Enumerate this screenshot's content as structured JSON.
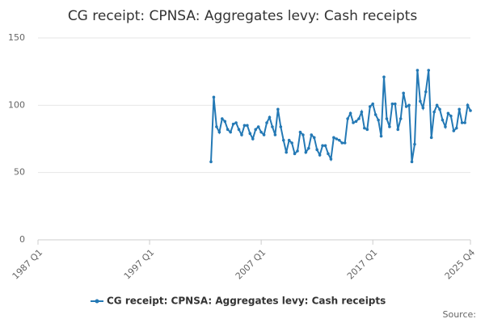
{
  "chart_data": {
    "type": "line",
    "title": "CG receipt: CPNSA: Aggregates levy: Cash receipts",
    "categories": [
      "1987 Q1",
      null,
      null,
      null,
      null,
      null,
      null,
      null,
      null,
      null,
      null,
      null,
      null,
      null,
      null,
      null,
      null,
      null,
      null,
      null,
      null,
      null,
      null,
      null,
      null,
      null,
      null,
      null,
      null,
      null,
      null,
      null,
      null,
      null,
      null,
      null,
      null,
      null,
      null,
      null,
      "1997 Q1",
      null,
      null,
      null,
      null,
      null,
      null,
      null,
      null,
      null,
      null,
      null,
      null,
      null,
      null,
      null,
      null,
      null,
      null,
      null,
      null,
      null,
      null,
      null,
      null,
      null,
      null,
      null,
      null,
      null,
      null,
      null,
      null,
      null,
      null,
      null,
      null,
      null,
      null,
      null,
      "2007 Q1",
      null,
      null,
      null,
      null,
      null,
      null,
      null,
      null,
      null,
      null,
      null,
      null,
      null,
      null,
      null,
      null,
      null,
      null,
      null,
      null,
      null,
      null,
      null,
      null,
      null,
      null,
      null,
      null,
      null,
      null,
      null,
      null,
      null,
      null,
      null,
      null,
      null,
      null,
      null,
      "2017 Q1",
      null,
      null,
      null,
      null,
      null,
      null,
      null,
      null,
      null,
      null,
      null,
      null,
      null,
      null,
      null,
      null,
      null,
      null,
      null,
      null,
      null,
      null,
      null,
      null,
      null,
      null,
      null,
      null,
      null,
      null,
      null,
      null,
      null,
      null,
      "2025 Q4"
    ],
    "series": [
      {
        "name": "CG receipt: CPNSA: Aggregates levy: Cash receipts",
        "color": "#2479b5",
        "values": [
          null,
          null,
          null,
          null,
          null,
          null,
          null,
          null,
          null,
          null,
          null,
          null,
          null,
          null,
          null,
          null,
          null,
          null,
          null,
          null,
          null,
          null,
          null,
          null,
          null,
          null,
          null,
          null,
          null,
          null,
          null,
          null,
          null,
          null,
          null,
          null,
          null,
          null,
          null,
          null,
          null,
          null,
          null,
          null,
          null,
          null,
          null,
          null,
          null,
          null,
          null,
          null,
          null,
          null,
          null,
          null,
          null,
          null,
          null,
          null,
          null,
          null,
          58,
          106,
          84,
          80,
          90,
          88,
          82,
          80,
          86,
          87,
          82,
          78,
          85,
          85,
          79,
          75,
          82,
          84,
          80,
          78,
          87,
          91,
          84,
          78,
          97,
          84,
          74,
          65,
          74,
          72,
          64,
          66,
          80,
          78,
          65,
          68,
          78,
          76,
          67,
          63,
          70,
          70,
          64,
          60,
          76,
          75,
          74,
          72,
          72,
          90,
          94,
          87,
          88,
          90,
          95,
          83,
          82,
          99,
          101,
          93,
          89,
          77,
          121,
          90,
          84,
          101,
          101,
          82,
          90,
          109,
          99,
          100,
          58,
          71,
          126,
          103,
          98,
          110,
          126,
          76,
          95,
          100,
          97,
          89,
          84,
          94,
          92,
          81,
          83,
          97,
          87,
          87,
          100,
          96
        ]
      }
    ],
    "ylim": [
      0,
      150
    ],
    "yticks": [
      0,
      50,
      100,
      150
    ],
    "grid": true,
    "legend": "bottom",
    "source": "Source:"
  }
}
